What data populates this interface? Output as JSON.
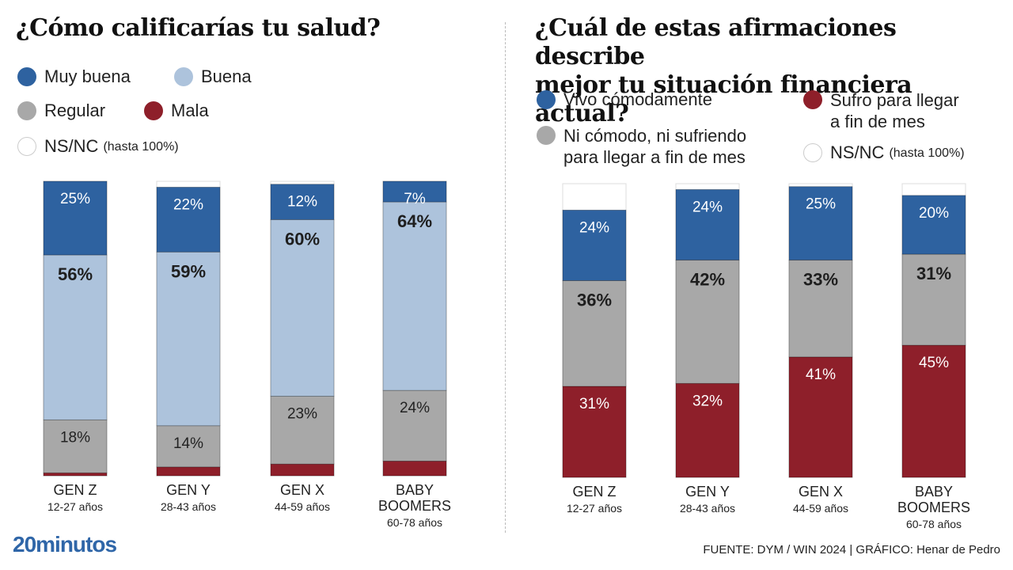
{
  "colors": {
    "muy_buena": "#2e62a0",
    "buena": "#adc3dc",
    "regular": "#a8a8a8",
    "mala": "#8e1f2a",
    "nsnc": "#ffffff",
    "vivo": "#2e62a0",
    "ni": "#a8a8a8",
    "sufro": "#8e1f2a"
  },
  "chart_data": [
    {
      "type": "bar",
      "stacked": true,
      "title": "¿Cómo calificarías tu salud?",
      "categories": [
        "GEN Z",
        "GEN Y",
        "GEN X",
        "BABY BOOMERS"
      ],
      "category_sublabels": [
        "12-27 años",
        "28-43 años",
        "44-59 años",
        "60-78 años"
      ],
      "ylim": [
        0,
        100
      ],
      "legend": [
        "Muy buena",
        "Buena",
        "Regular",
        "Mala",
        "NS/NC (hasta 100%)"
      ],
      "series": [
        {
          "name": "Mala",
          "key": "mala",
          "values": [
            1,
            3,
            4,
            5
          ]
        },
        {
          "name": "Regular",
          "key": "regular",
          "values": [
            18,
            14,
            23,
            24
          ]
        },
        {
          "name": "Buena",
          "key": "buena",
          "values": [
            56,
            59,
            60,
            64
          ]
        },
        {
          "name": "Muy buena",
          "key": "muy_buena",
          "values": [
            25,
            22,
            12,
            7
          ]
        }
      ]
    },
    {
      "type": "bar",
      "stacked": true,
      "title": "¿Cuál de estas afirmaciones describe mejor tu situación financiera actual?",
      "categories": [
        "GEN Z",
        "GEN Y",
        "GEN X",
        "BABY BOOMERS"
      ],
      "category_sublabels": [
        "12-27 años",
        "28-43 años",
        "44-59 años",
        "60-78 años"
      ],
      "ylim": [
        0,
        100
      ],
      "legend": [
        "Vivo cómodamente",
        "Sufro para llegar a fin de mes",
        "Ni cómodo, ni sufriendo para llegar a fin de mes",
        "NS/NC (hasta 100%)"
      ],
      "series": [
        {
          "name": "Sufro para llegar a fin de mes",
          "key": "sufro",
          "values": [
            31,
            32,
            41,
            45
          ]
        },
        {
          "name": "Ni cómodo, ni sufriendo para llegar a fin de mes",
          "key": "ni",
          "values": [
            36,
            42,
            33,
            31
          ]
        },
        {
          "name": "Vivo cómodamente",
          "key": "vivo",
          "values": [
            24,
            24,
            25,
            20
          ]
        }
      ]
    }
  ],
  "left": {
    "title": "¿Cómo calificarías tu salud?",
    "legend": {
      "muy_buena": "Muy buena",
      "buena": "Buena",
      "regular": "Regular",
      "mala": "Mala",
      "nsnc": "NS/NC",
      "nsnc_note": "(hasta 100%)"
    }
  },
  "right": {
    "title_line1": "¿Cuál de estas afirmaciones describe",
    "title_line2": "mejor tu situación financiera actual?",
    "legend": {
      "vivo": "Vivo cómodamente",
      "ni_line1": "Ni cómodo, ni sufriendo",
      "ni_line2": "para llegar a fin de mes",
      "sufro_line1": "Sufro para llegar",
      "sufro_line2": "a fin de mes",
      "nsnc": "NS/NC",
      "nsnc_note": "(hasta 100%)"
    }
  },
  "footer": {
    "logo": "20minutos",
    "source": "FUENTE: DYM / WIN 2024  |  GRÁFICO: Henar de Pedro"
  }
}
